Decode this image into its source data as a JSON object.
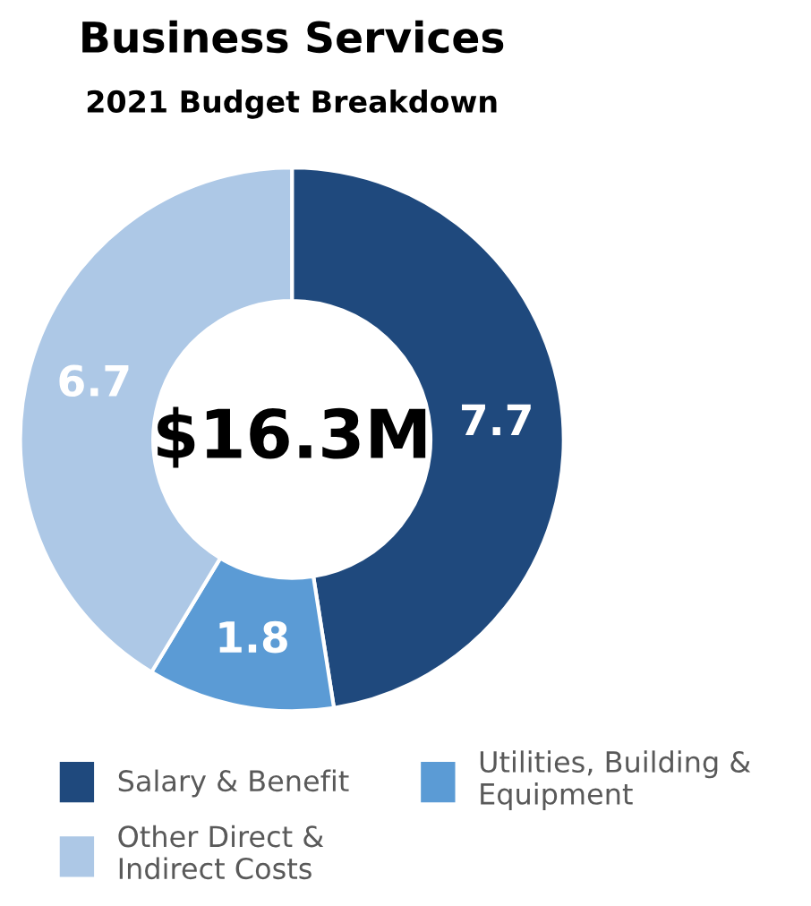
{
  "chart_data": {
    "type": "donut",
    "title": "Business Services",
    "subtitle": "2021 Budget Breakdown",
    "categories": [
      "Salary & Benefit",
      "Utilities, Building & Equipment",
      "Other Direct & Indirect Costs"
    ],
    "values": [
      7.7,
      1.8,
      6.7
    ],
    "colors": [
      "#1f497d",
      "#5b9bd5",
      "#adc8e6"
    ],
    "data_labels": true,
    "annotations": [
      "$16.3M"
    ],
    "legend": "bottom"
  }
}
